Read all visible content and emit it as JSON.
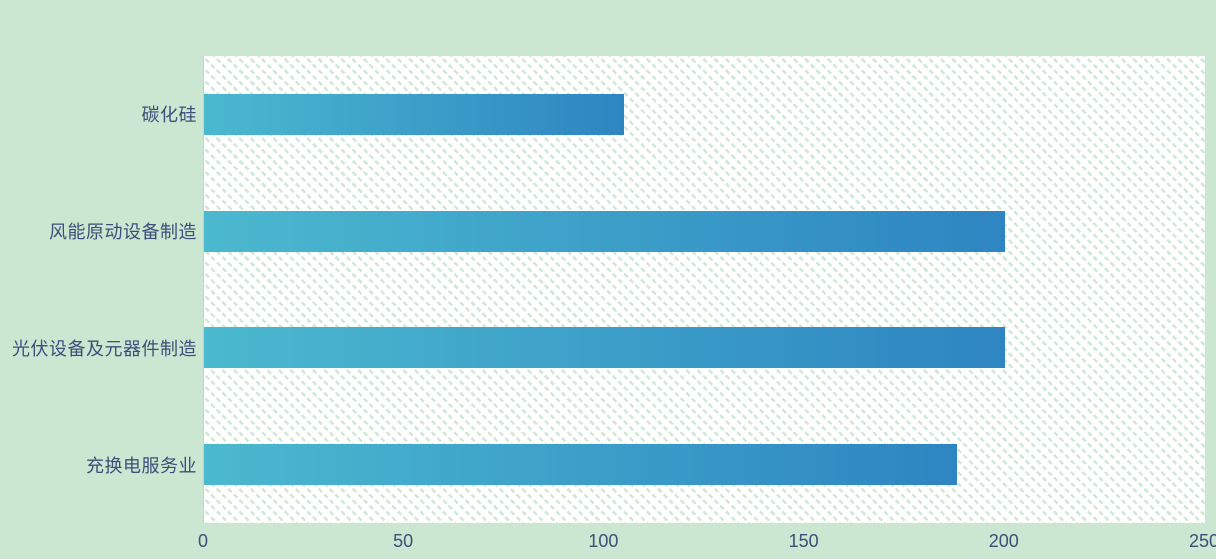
{
  "chart_data": {
    "type": "bar",
    "orientation": "horizontal",
    "title": "",
    "xlabel": "",
    "ylabel": "",
    "categories": [
      "碳化硅",
      "风能原动设备制造",
      "光伏设备及元器件制造",
      "充换电服务业"
    ],
    "values": [
      105,
      200,
      200,
      188
    ],
    "x_ticks": [
      "0",
      "50",
      "100",
      "150",
      "200",
      "250"
    ],
    "xlim": [
      0,
      250
    ],
    "grid": false,
    "legend": false,
    "plot_background": "white-with-diagonal-green-hatch",
    "colors": {
      "page_background": "#cce7d1",
      "bar_gradient_start": "#4bb9cf",
      "bar_gradient_end": "#2e85c2",
      "hatch": "#d0e8d6",
      "axis_text": "#3b4f79"
    }
  }
}
